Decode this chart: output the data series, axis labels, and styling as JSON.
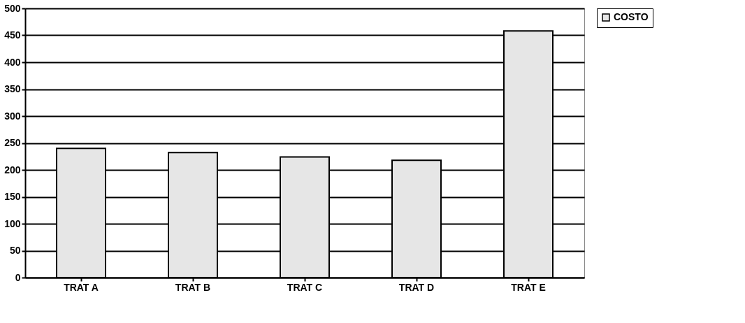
{
  "chart_data": {
    "type": "bar",
    "categories": [
      "TRAT A",
      "TRAT B",
      "TRAT C",
      "TRAT D",
      "TRAT E"
    ],
    "series": [
      {
        "name": "COSTO",
        "color": "#e6e6e6",
        "values": [
          240,
          232,
          224,
          218,
          458
        ]
      }
    ],
    "ylim": [
      0,
      500
    ],
    "yticks": [
      0,
      50,
      100,
      150,
      200,
      250,
      300,
      350,
      400,
      450,
      500
    ],
    "grid": "y",
    "legend": "right"
  }
}
